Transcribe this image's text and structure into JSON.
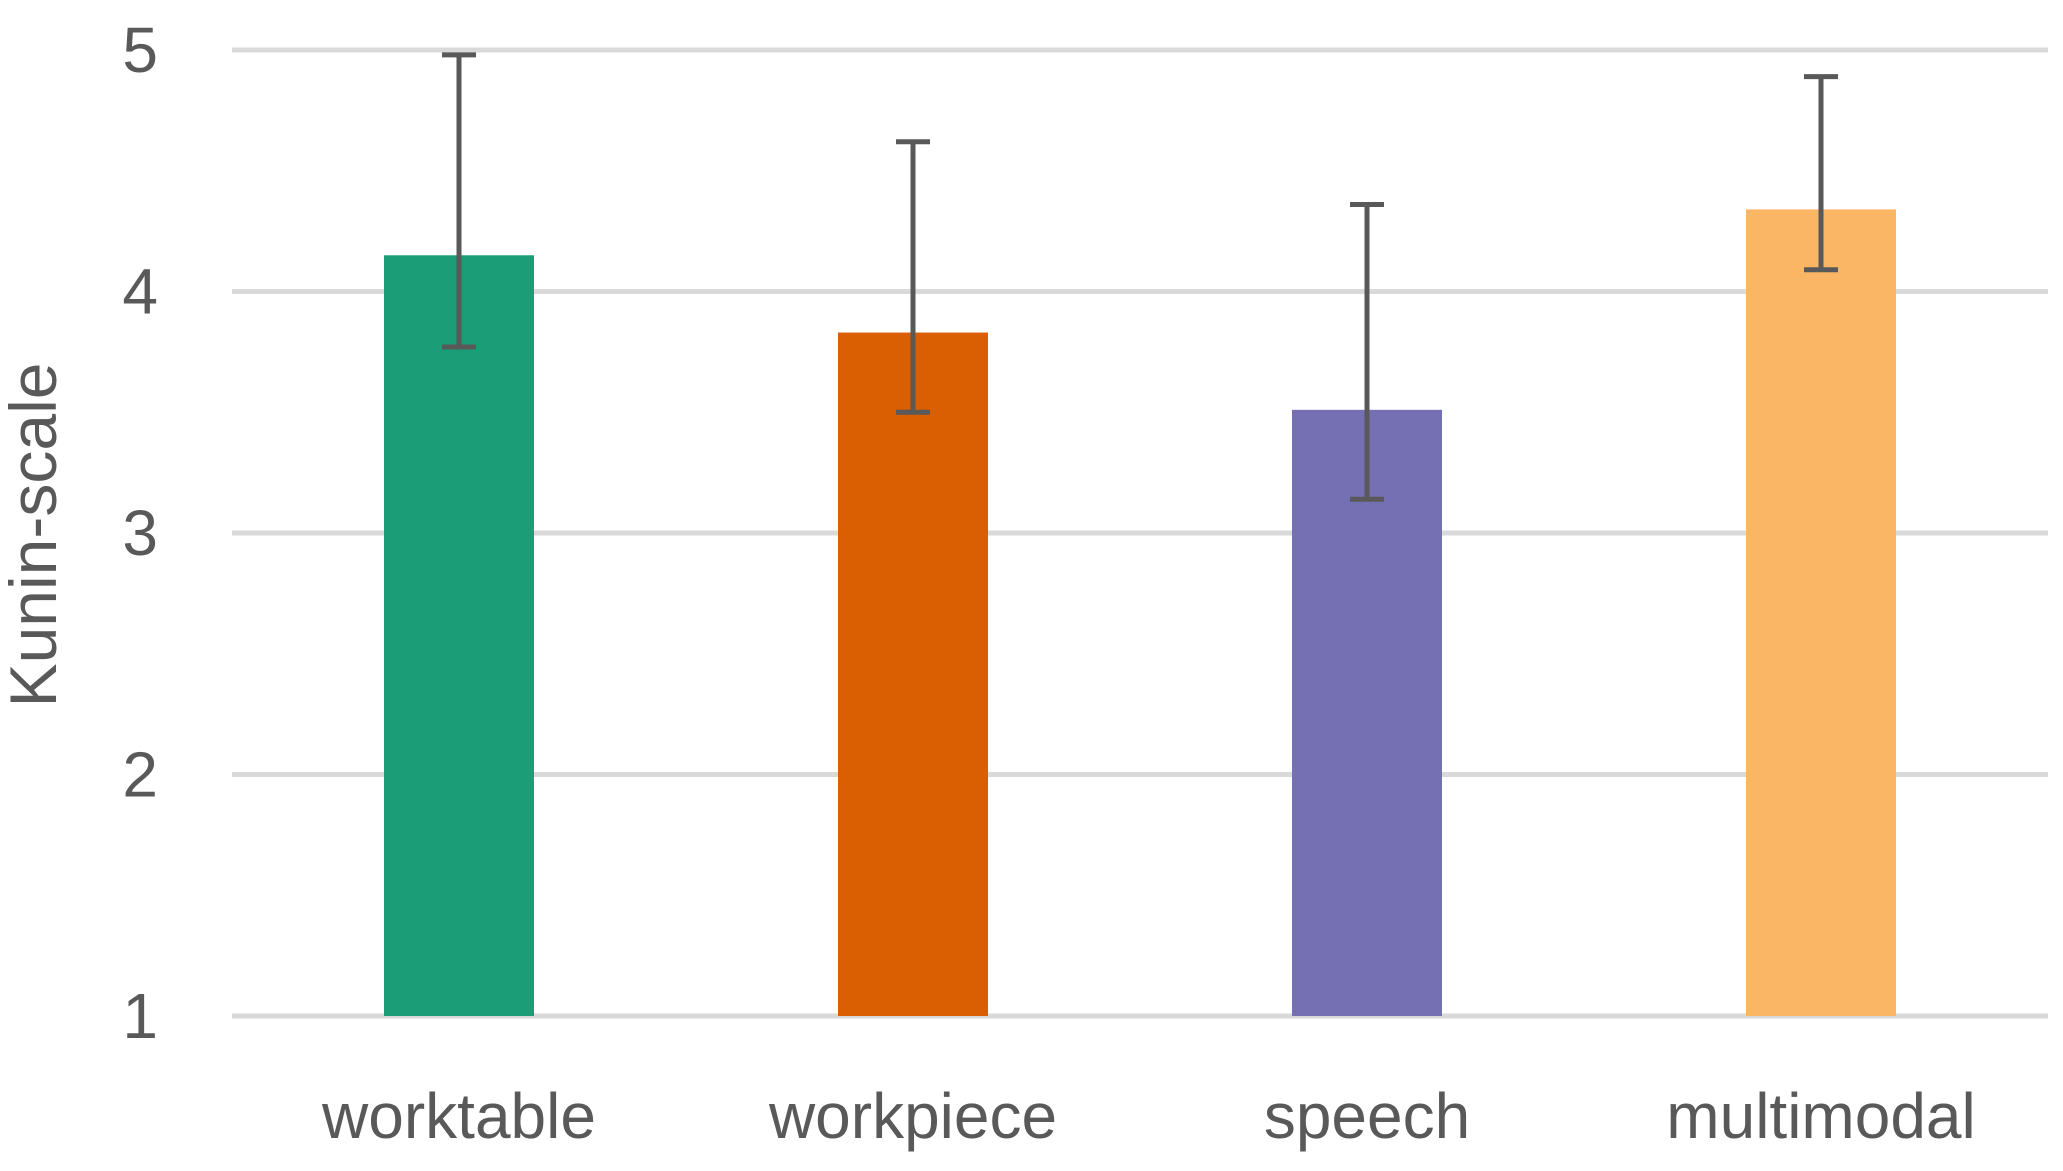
{
  "chart_data": {
    "type": "bar",
    "title": "",
    "xlabel": "",
    "ylabel": "Kunin-scale",
    "ylim": [
      1,
      5
    ],
    "yticks": [
      1,
      2,
      3,
      4,
      5
    ],
    "grid": true,
    "legend": "none",
    "categories": [
      "worktable",
      "workpiece",
      "speech",
      "multimodal"
    ],
    "values": [
      4.15,
      3.83,
      3.51,
      4.34
    ],
    "error_bars": [
      {
        "low": 3.77,
        "high": 4.98
      },
      {
        "low": 3.5,
        "high": 4.62
      },
      {
        "low": 3.14,
        "high": 4.36
      },
      {
        "low": 4.09,
        "high": 4.89
      }
    ],
    "colors": [
      "#1b9e77",
      "#d95f02",
      "#7570b3",
      "#fbb665"
    ],
    "gridline_color": "#d9d9d9",
    "errorbar_color": "#595959",
    "text_color": "#595959"
  }
}
